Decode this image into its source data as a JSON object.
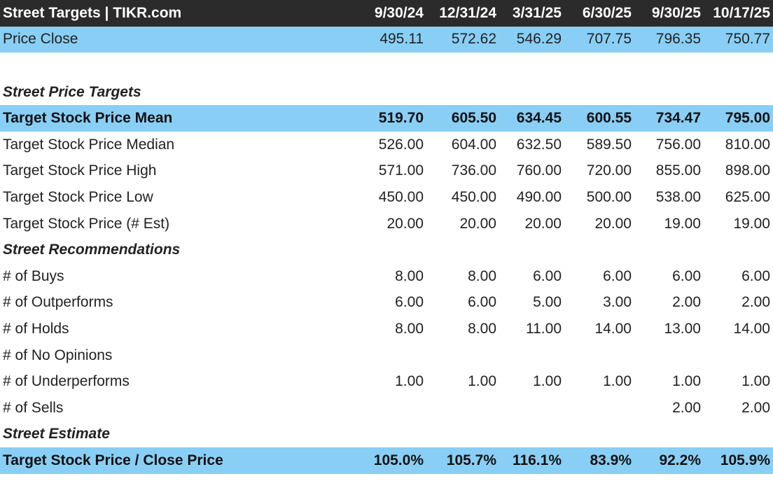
{
  "title": "Street Targets | TIKR.com",
  "columns": [
    "9/30/24",
    "12/31/24",
    "3/31/25",
    "6/30/25",
    "9/30/25",
    "10/17/25"
  ],
  "colors": {
    "header_bg": "#2b2b2b",
    "highlight_bg": "#89cff5"
  },
  "chart_data": {
    "type": "table",
    "title": "Street Targets | TIKR.com",
    "columns": [
      "9/30/24",
      "12/31/24",
      "3/31/25",
      "6/30/25",
      "9/30/25",
      "10/17/25"
    ],
    "rows": [
      {
        "label": "Price Close",
        "kind": "highlight",
        "values": [
          "495.11",
          "572.62",
          "546.29",
          "707.75",
          "796.35",
          "750.77"
        ]
      },
      {
        "label": "",
        "kind": "gap",
        "values": [
          "",
          "",
          "",
          "",
          "",
          ""
        ]
      },
      {
        "label": "Street Price Targets",
        "kind": "section",
        "values": [
          "",
          "",
          "",
          "",
          "",
          ""
        ]
      },
      {
        "label": "Target Stock Price Mean",
        "kind": "highlight-bold",
        "values": [
          "519.70",
          "605.50",
          "634.45",
          "600.55",
          "734.47",
          "795.00"
        ]
      },
      {
        "label": "Target Stock Price Median",
        "kind": "normal",
        "values": [
          "526.00",
          "604.00",
          "632.50",
          "589.50",
          "756.00",
          "810.00"
        ]
      },
      {
        "label": "Target Stock Price High",
        "kind": "normal",
        "values": [
          "571.00",
          "736.00",
          "760.00",
          "720.00",
          "855.00",
          "898.00"
        ]
      },
      {
        "label": "Target Stock Price Low",
        "kind": "normal",
        "values": [
          "450.00",
          "450.00",
          "490.00",
          "500.00",
          "538.00",
          "625.00"
        ]
      },
      {
        "label": "Target Stock Price (# Est)",
        "kind": "normal",
        "values": [
          "20.00",
          "20.00",
          "20.00",
          "20.00",
          "19.00",
          "19.00"
        ]
      },
      {
        "label": "Street Recommendations",
        "kind": "section",
        "values": [
          "",
          "",
          "",
          "",
          "",
          ""
        ]
      },
      {
        "label": "# of Buys",
        "kind": "normal",
        "values": [
          "8.00",
          "8.00",
          "6.00",
          "6.00",
          "6.00",
          "6.00"
        ]
      },
      {
        "label": "# of Outperforms",
        "kind": "normal",
        "values": [
          "6.00",
          "6.00",
          "5.00",
          "3.00",
          "2.00",
          "2.00"
        ]
      },
      {
        "label": "# of Holds",
        "kind": "normal",
        "values": [
          "8.00",
          "8.00",
          "11.00",
          "14.00",
          "13.00",
          "14.00"
        ]
      },
      {
        "label": "# of No Opinions",
        "kind": "normal",
        "values": [
          "",
          "",
          "",
          "",
          "",
          ""
        ]
      },
      {
        "label": "# of Underperforms",
        "kind": "normal",
        "values": [
          "1.00",
          "1.00",
          "1.00",
          "1.00",
          "1.00",
          "1.00"
        ]
      },
      {
        "label": "# of Sells",
        "kind": "normal",
        "values": [
          "",
          "",
          "",
          "",
          "2.00",
          "2.00"
        ]
      },
      {
        "label": "Street Estimate",
        "kind": "section",
        "values": [
          "",
          "",
          "",
          "",
          "",
          ""
        ]
      },
      {
        "label": "Target Stock Price / Close Price",
        "kind": "highlight-bold",
        "values": [
          "105.0%",
          "105.7%",
          "116.1%",
          "83.9%",
          "92.2%",
          "105.9%"
        ]
      }
    ]
  }
}
